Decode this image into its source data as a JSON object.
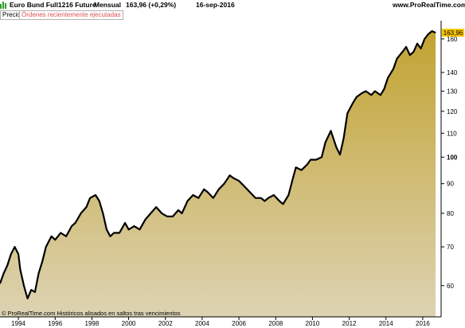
{
  "header": {
    "instrument": "Euro Bund Full1216 Future",
    "period": "Mensual",
    "price_change": "163,96 (+0,29%)",
    "date": "16-sep-2016",
    "brand": "www.ProRealTime.com"
  },
  "tabs": {
    "price": "Precio",
    "orders": "Órdenes recientemente ejecutadas"
  },
  "footer_note": "© ProRealTime.com Históricos alisados en saltos tras vencimientos",
  "last_price_label": "163,96",
  "colors": {
    "line": "#000000",
    "fill_top": "#c2a332",
    "fill_bottom": "#ddd3b3",
    "last_price_bg": "#f5c400",
    "axis": "#000000"
  },
  "chart_data": {
    "type": "area",
    "y_scale": "log",
    "ylim": [
      53,
      172
    ],
    "xlim": [
      1993.0,
      2017.0
    ],
    "y_ticks": [
      60,
      70,
      80,
      90,
      100,
      110,
      120,
      130,
      140,
      160
    ],
    "y_tick_labels": [
      "60",
      "70",
      "80",
      "90",
      "100",
      "110",
      "120",
      "130",
      "140",
      "160"
    ],
    "x_ticks": [
      1994,
      1996,
      1998,
      2000,
      2002,
      2004,
      2006,
      2008,
      2010,
      2012,
      2014,
      2016
    ],
    "x_tick_labels": [
      "1994",
      "1996",
      "1998",
      "2000",
      "2002",
      "2004",
      "2006",
      "2008",
      "2010",
      "2012",
      "2014",
      "2016"
    ],
    "last_value": 163.96,
    "series": [
      {
        "x": [
          1993.0,
          1993.2,
          1993.4,
          1993.6,
          1993.8,
          1994.0,
          1994.1,
          1994.3,
          1994.5,
          1994.7,
          1994.9,
          1995.1,
          1995.3,
          1995.5,
          1995.8,
          1996.0,
          1996.3,
          1996.6,
          1996.9,
          1997.1,
          1997.4,
          1997.7,
          1997.9,
          1998.2,
          1998.4,
          1998.6,
          1998.8,
          1999.0,
          1999.2,
          1999.5,
          1999.8,
          2000.0,
          2000.3,
          2000.6,
          2000.9,
          2001.2,
          2001.5,
          2001.8,
          2002.1,
          2002.4,
          2002.7,
          2002.9,
          2003.2,
          2003.5,
          2003.8,
          2004.1,
          2004.3,
          2004.6,
          2004.9,
          2005.2,
          2005.5,
          2005.7,
          2006.0,
          2006.3,
          2006.6,
          2006.9,
          2007.2,
          2007.4,
          2007.6,
          2007.9,
          2008.2,
          2008.4,
          2008.7,
          2008.9,
          2009.1,
          2009.4,
          2009.7,
          2009.9,
          2010.2,
          2010.5,
          2010.7,
          2011.0,
          2011.3,
          2011.5,
          2011.7,
          2011.9,
          2012.2,
          2012.4,
          2012.7,
          2012.9,
          2013.2,
          2013.4,
          2013.7,
          2013.9,
          2014.1,
          2014.4,
          2014.6,
          2014.9,
          2015.1,
          2015.3,
          2015.5,
          2015.7,
          2015.9,
          2016.1,
          2016.3,
          2016.5,
          2016.7
        ],
        "y": [
          60.5,
          63,
          65,
          68,
          70,
          68,
          64,
          60,
          57,
          59,
          58.5,
          63,
          66,
          70,
          73,
          72,
          74,
          73,
          76,
          77,
          80,
          82,
          85,
          86,
          84,
          80,
          75,
          73,
          74,
          74,
          77,
          75,
          76,
          75,
          78,
          80,
          82,
          80,
          79,
          79,
          81,
          80,
          84,
          86,
          85,
          88,
          87,
          85,
          88,
          90,
          93,
          92,
          91,
          89,
          87,
          85,
          85,
          84,
          85,
          86,
          84,
          83,
          86,
          91,
          96,
          95,
          97,
          99,
          99,
          100,
          106,
          111,
          104,
          101,
          108,
          119,
          124,
          127,
          129,
          130,
          128,
          130,
          128,
          131,
          137,
          142,
          148,
          152,
          155,
          150,
          152,
          157,
          154,
          160,
          163,
          165,
          164
        ]
      }
    ]
  }
}
